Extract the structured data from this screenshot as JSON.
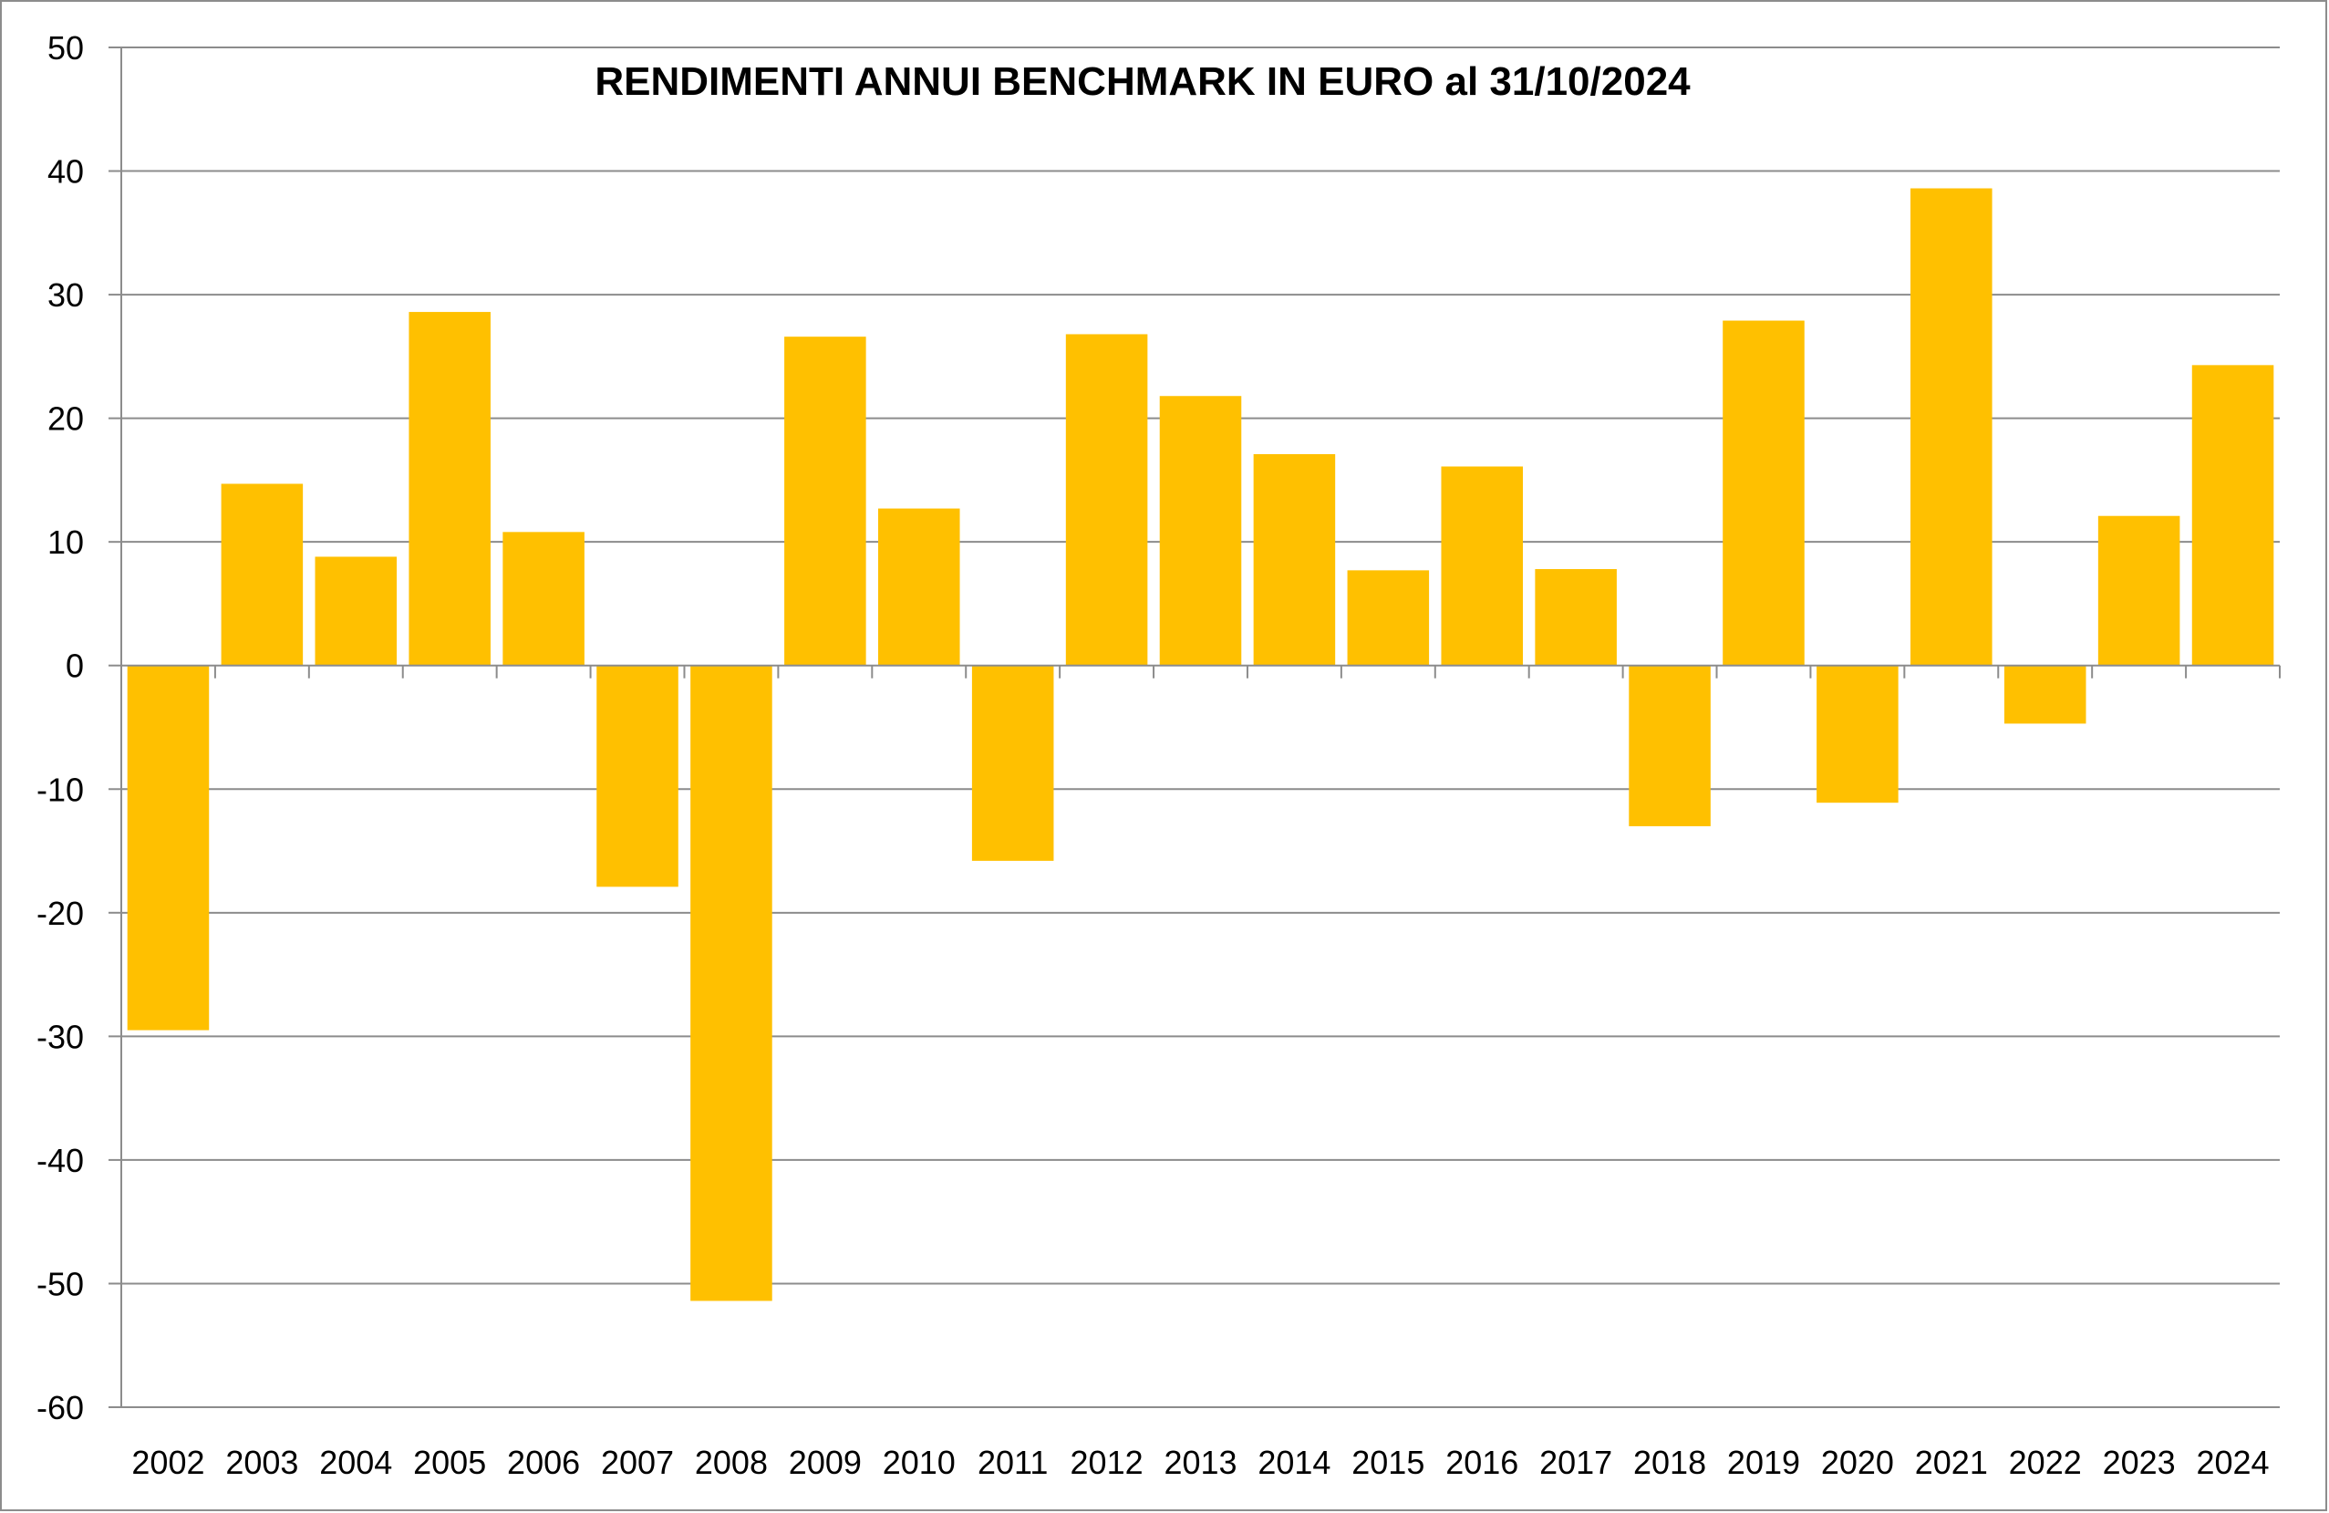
{
  "chart_data": {
    "type": "bar",
    "title": "RENDIMENTI ANNUI BENCHMARK IN EURO al 31/10/2024",
    "xlabel": "",
    "ylabel": "",
    "ylim": [
      -60,
      50
    ],
    "y_ticks": [
      50,
      40,
      30,
      20,
      10,
      0,
      -10,
      -20,
      -30,
      -40,
      -50,
      -60
    ],
    "grid": true,
    "legend": "none",
    "bar_color": "#FFC000",
    "categories": [
      "2002",
      "2003",
      "2004",
      "2005",
      "2006",
      "2007",
      "2008",
      "2009",
      "2010",
      "2011",
      "2012",
      "2013",
      "2014",
      "2015",
      "2016",
      "2017",
      "2018",
      "2019",
      "2020",
      "2021",
      "2022",
      "2023",
      "2024"
    ],
    "values": [
      -29.5,
      14.7,
      8.8,
      28.6,
      10.8,
      -17.9,
      -51.4,
      26.6,
      12.7,
      -15.8,
      26.8,
      21.8,
      17.1,
      7.7,
      16.1,
      7.8,
      -13.0,
      27.9,
      -11.1,
      38.6,
      -4.7,
      12.1,
      24.3
    ]
  }
}
